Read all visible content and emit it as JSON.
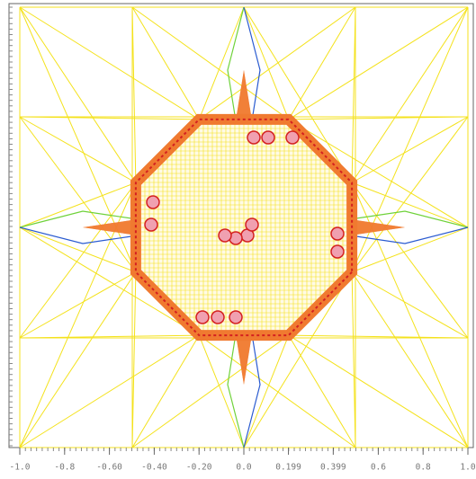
{
  "chart_data": {
    "type": "mesh",
    "xlim": [
      -1.0,
      1.0
    ],
    "xticks": [
      {
        "value": -1.0,
        "label": "-1.0"
      },
      {
        "value": -0.8,
        "label": "-0.8"
      },
      {
        "value": -0.6,
        "label": "-0.60"
      },
      {
        "value": -0.4,
        "label": "-0.40"
      },
      {
        "value": -0.2,
        "label": "-0.20"
      },
      {
        "value": 0.0,
        "label": "0.0"
      },
      0.199,
      0.399,
      0.6,
      0.8,
      {
        "value": 1.0,
        "label": "1.0"
      }
    ]
  }
}
